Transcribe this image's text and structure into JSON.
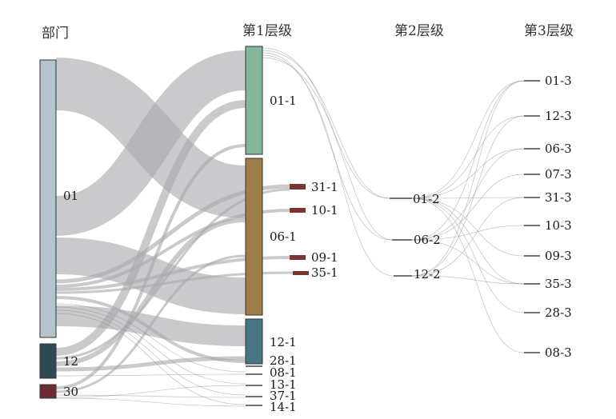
{
  "columns": {
    "dept": "部门",
    "level1": "第1层级",
    "level2": "第2层级",
    "level3": "第3层级"
  },
  "nodes": {
    "dept": [
      "01",
      "12",
      "30"
    ],
    "level1": [
      "01-1",
      "06-1",
      "31-1",
      "10-1",
      "09-1",
      "35-1",
      "12-1",
      "28-1",
      "08-1",
      "13-1",
      "37-1",
      "14-1"
    ],
    "level2": [
      "01-2",
      "06-2",
      "12-2"
    ],
    "level3": [
      "01-3",
      "12-3",
      "06-3",
      "07-3",
      "31-3",
      "10-3",
      "09-3",
      "35-3",
      "28-3",
      "08-3"
    ]
  },
  "colors": {
    "dept_01": "#b4c3cc",
    "dept_12": "#2f4a52",
    "dept_30": "#6b2b34",
    "node_01_1": "#85b59a",
    "node_06_1": "#9e7d48",
    "node_12_1": "#467685",
    "small_red": "#7a3434",
    "flow": "#a9a9ae"
  }
}
